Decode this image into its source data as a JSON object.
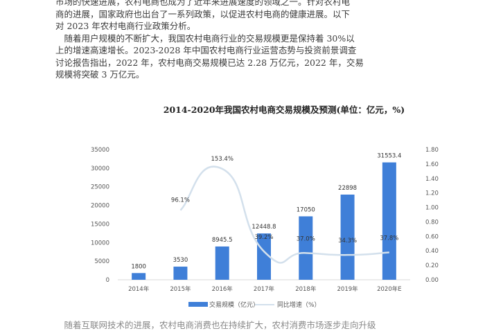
{
  "document": {
    "paragraphs": [
      "市场的快速进展，农村电商也成为了近年来进展速度的领域之一。针对农村电",
      "商的进展，国家政府也出台了一系列政策，以促进农村电商的健康进展。以下",
      "对 2023 年农村电商行业政策分析。",
      "　随着用户规模的不断扩大，我国农村电商行业的交易规模更是保持着 30%以",
      "上的增速高速增长。2023-2028 年中国农村电商行业运营态势与投资前景调查",
      "讨论报告指出，2022 年，农村电商交易规模已达 2.28 万亿元，2022 年，交易",
      "规模将突破 3 万亿元。"
    ],
    "bottom_line": "　随着互联网技术的进展，农村电商消费也在持续扩大，农村消费市场逐步走向升级"
  },
  "chart_data": {
    "type": "bar+line",
    "title": "2014-2020年我国农村电商交易规模及预测(单位：亿元，%)",
    "categories": [
      "2014年",
      "2015年",
      "2016年",
      "2017年",
      "2018年",
      "2019年",
      "2020年E"
    ],
    "series": [
      {
        "name": "交易规模（亿元）",
        "type": "bar",
        "axis": "left",
        "color": "#3f7fd8",
        "values": [
          1800,
          3530,
          8945.5,
          12448.8,
          17050,
          22898,
          31553.4
        ],
        "labels": [
          "1800",
          "3530",
          "8945.5",
          "12448.8",
          "17050",
          "22898",
          "31553.4"
        ]
      },
      {
        "name": "同比增速（%）",
        "type": "line",
        "axis": "right",
        "color": "#d3e0ec",
        "values": [
          null,
          0.961,
          1.534,
          0.392,
          0.37,
          0.343,
          0.378
        ],
        "labels": [
          "",
          "96.1%",
          "153.4%",
          "39.2%",
          "37.0%",
          "34.3%",
          "37.8%"
        ]
      }
    ],
    "left_axis": {
      "ylim": [
        0,
        35000
      ],
      "ticks": [
        "0",
        "5000",
        "10000",
        "15000",
        "20000",
        "25000",
        "30000",
        "35000"
      ]
    },
    "right_axis": {
      "ylim": [
        0,
        1.8
      ],
      "ticks": [
        "0.00",
        "0.20",
        "0.40",
        "0.60",
        "0.80",
        "1.00",
        "1.20",
        "1.40",
        "1.60",
        "1.80"
      ]
    },
    "grid": false,
    "legend_position": "bottom"
  }
}
